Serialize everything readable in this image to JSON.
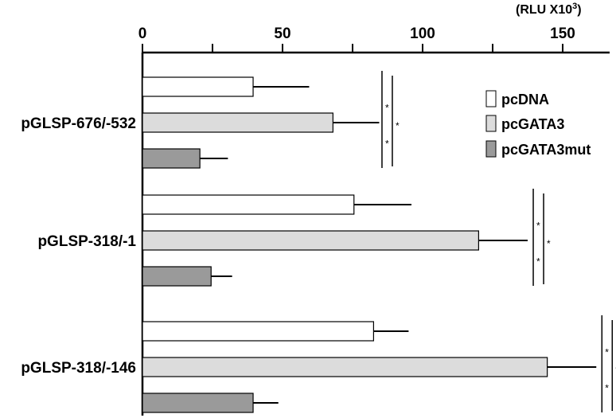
{
  "chart_data": {
    "type": "bar",
    "orientation": "horizontal",
    "axis_position": "top",
    "unit_label": {
      "prefix": "(RLU X10",
      "sup": "3",
      "suffix": ")"
    },
    "xlim": [
      0,
      165
    ],
    "xticks": [
      0,
      50,
      100,
      150
    ],
    "minor_ticks": [
      25,
      75,
      125
    ],
    "categories": [
      "pGLSP-676/-532",
      "pGLSP-318/-1",
      "pGLSP-318/-146"
    ],
    "series": [
      {
        "name": "pcDNA",
        "color": "#ffffff",
        "values": [
          39.5,
          75.5,
          82.5
        ],
        "errors": [
          20,
          20.5,
          12.5
        ]
      },
      {
        "name": "pcGATA3",
        "color": "#dcdcdc",
        "values": [
          68,
          120,
          144.5
        ],
        "errors": [
          16.5,
          17.5,
          17.5
        ]
      },
      {
        "name": "pcGATA3mut",
        "color": "#9a9a9a",
        "values": [
          20.5,
          24.5,
          39.5
        ],
        "errors": [
          10,
          7.5,
          9
        ]
      }
    ],
    "significance": {
      "marker": "*",
      "positions_x": [
        85.5,
        139.5,
        164
      ]
    },
    "legend": {
      "position": "top-right",
      "items": [
        "pcDNA",
        "pcGATA3",
        "pcGATA3mut"
      ]
    }
  }
}
